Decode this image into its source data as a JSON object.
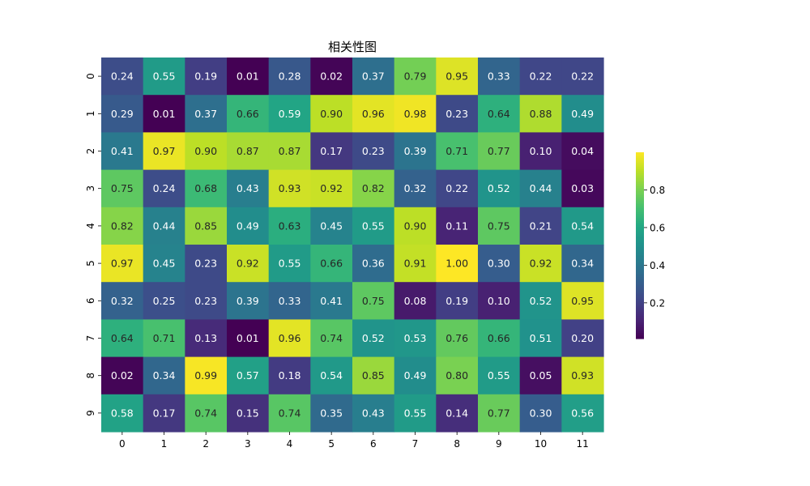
{
  "chart_data": {
    "type": "heatmap",
    "title": "相关性图",
    "xlabel": "",
    "ylabel": "",
    "x_categories": [
      "0",
      "1",
      "2",
      "3",
      "4",
      "5",
      "6",
      "7",
      "8",
      "9",
      "10",
      "11"
    ],
    "y_categories": [
      "0",
      "1",
      "2",
      "3",
      "4",
      "5",
      "6",
      "7",
      "8",
      "9"
    ],
    "values": [
      [
        0.24,
        0.55,
        0.19,
        0.01,
        0.28,
        0.02,
        0.37,
        0.79,
        0.95,
        0.33,
        0.22,
        0.22
      ],
      [
        0.29,
        0.01,
        0.37,
        0.66,
        0.59,
        0.9,
        0.96,
        0.98,
        0.23,
        0.64,
        0.88,
        0.49
      ],
      [
        0.41,
        0.97,
        0.9,
        0.87,
        0.87,
        0.17,
        0.23,
        0.39,
        0.71,
        0.77,
        0.1,
        0.04
      ],
      [
        0.75,
        0.24,
        0.68,
        0.43,
        0.93,
        0.92,
        0.82,
        0.32,
        0.22,
        0.52,
        0.44,
        0.03
      ],
      [
        0.82,
        0.44,
        0.85,
        0.49,
        0.63,
        0.45,
        0.55,
        0.9,
        0.11,
        0.75,
        0.21,
        0.54
      ],
      [
        0.97,
        0.45,
        0.23,
        0.92,
        0.55,
        0.66,
        0.36,
        0.91,
        1.0,
        0.3,
        0.92,
        0.34
      ],
      [
        0.32,
        0.25,
        0.23,
        0.39,
        0.33,
        0.41,
        0.75,
        0.08,
        0.19,
        0.1,
        0.52,
        0.95
      ],
      [
        0.64,
        0.71,
        0.13,
        0.01,
        0.96,
        0.74,
        0.52,
        0.53,
        0.76,
        0.66,
        0.51,
        0.2
      ],
      [
        0.02,
        0.34,
        0.99,
        0.57,
        0.18,
        0.54,
        0.85,
        0.49,
        0.8,
        0.55,
        0.05,
        0.93
      ],
      [
        0.58,
        0.17,
        0.74,
        0.15,
        0.74,
        0.35,
        0.43,
        0.55,
        0.14,
        0.77,
        0.3,
        0.56
      ]
    ],
    "value_format": "0.00",
    "colormap": "viridis",
    "color_range": [
      0.01,
      1.0
    ],
    "colorbar": {
      "ticks": [
        0.2,
        0.4,
        0.6,
        0.8
      ],
      "tick_labels": [
        "0.2",
        "0.4",
        "0.6",
        "0.8"
      ]
    },
    "grid": false
  }
}
